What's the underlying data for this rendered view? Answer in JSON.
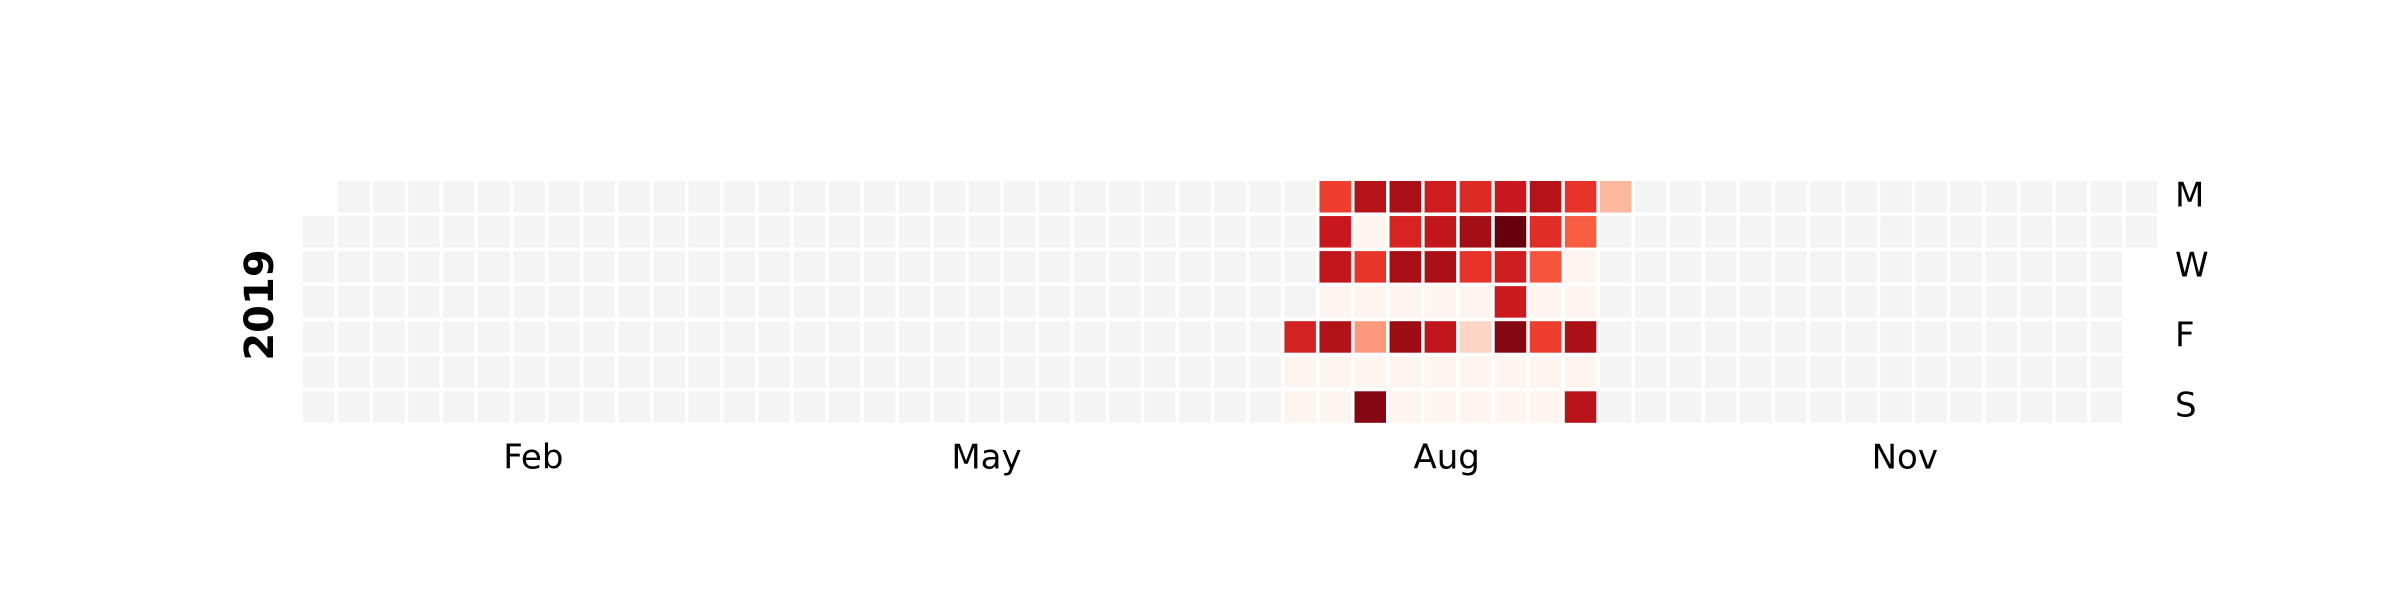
{
  "chart_data": {
    "type": "calendar_heatmap",
    "colormap": "Reds",
    "missing_color": "#f4f4f4",
    "year": "2019",
    "month_labels": [
      "Feb",
      "May",
      "Aug",
      "Nov"
    ],
    "day_labels": [
      "M",
      "W",
      "F",
      "S"
    ],
    "values": [
      null,
      null,
      null,
      null,
      null,
      null,
      null,
      null,
      null,
      null,
      null,
      null,
      null,
      null,
      null,
      null,
      null,
      null,
      null,
      null,
      null,
      null,
      null,
      null,
      null,
      null,
      null,
      null,
      null,
      null,
      null,
      null,
      null,
      null,
      null,
      null,
      null,
      null,
      null,
      null,
      null,
      null,
      null,
      null,
      null,
      null,
      null,
      null,
      null,
      null,
      null,
      null,
      null,
      null,
      null,
      null,
      null,
      null,
      null,
      null,
      null,
      null,
      null,
      null,
      null,
      null,
      null,
      null,
      null,
      null,
      null,
      null,
      null,
      null,
      null,
      null,
      null,
      null,
      null,
      null,
      null,
      null,
      null,
      null,
      null,
      null,
      null,
      null,
      null,
      null,
      null,
      null,
      null,
      null,
      null,
      null,
      null,
      null,
      null,
      null,
      null,
      null,
      null,
      null,
      null,
      null,
      null,
      null,
      null,
      null,
      null,
      null,
      null,
      null,
      null,
      null,
      null,
      null,
      null,
      null,
      null,
      null,
      null,
      null,
      null,
      null,
      null,
      null,
      null,
      null,
      null,
      null,
      null,
      null,
      null,
      null,
      null,
      null,
      null,
      null,
      null,
      null,
      null,
      null,
      null,
      null,
      null,
      null,
      null,
      null,
      null,
      null,
      null,
      null,
      null,
      null,
      null,
      null,
      null,
      null,
      null,
      null,
      null,
      null,
      null,
      null,
      null,
      null,
      null,
      null,
      null,
      null,
      null,
      null,
      null,
      null,
      null,
      null,
      null,
      null,
      null,
      null,
      null,
      null,
      null,
      null,
      null,
      null,
      null,
      null,
      null,
      null,
      null,
      null,
      null,
      null,
      null,
      null,
      null,
      72,
      1,
      1,
      62,
      76,
      79,
      1,
      84,
      1,
      1,
      82,
      1,
      65,
      1,
      36,
      1,
      94,
      86,
      71,
      87,
      1,
      89,
      1,
      1,
      74,
      78,
      86,
      1,
      79,
      1,
      1,
      69,
      88,
      66,
      1,
      17,
      1,
      1,
      76,
      100,
      74,
      75,
      94,
      1,
      1,
      82,
      68,
      56,
      1,
      62,
      1,
      1,
      66,
      54,
      1,
      1,
      86,
      1,
      81,
      27,
      null,
      null,
      null,
      null,
      null,
      null,
      null,
      null,
      null,
      null,
      null,
      null,
      null,
      null,
      null,
      null,
      null,
      null,
      null,
      null,
      null,
      null,
      null,
      null,
      null,
      null,
      null,
      null,
      null,
      null,
      null,
      null,
      null,
      null,
      null,
      null,
      null,
      null,
      null,
      null,
      null,
      null,
      null,
      null,
      null,
      null,
      null,
      null,
      null,
      null,
      null,
      null,
      null,
      null,
      null,
      null,
      null,
      null,
      null,
      null,
      null,
      null,
      null,
      null,
      null,
      null,
      null,
      null,
      null,
      null,
      null,
      null,
      null,
      null,
      null,
      null,
      null,
      null,
      null,
      null,
      null,
      null,
      null,
      null,
      null,
      null,
      null,
      null,
      null,
      null,
      null,
      null,
      null,
      null,
      null,
      null,
      null,
      null,
      null,
      null,
      null,
      null,
      null,
      null,
      null,
      null
    ]
  }
}
